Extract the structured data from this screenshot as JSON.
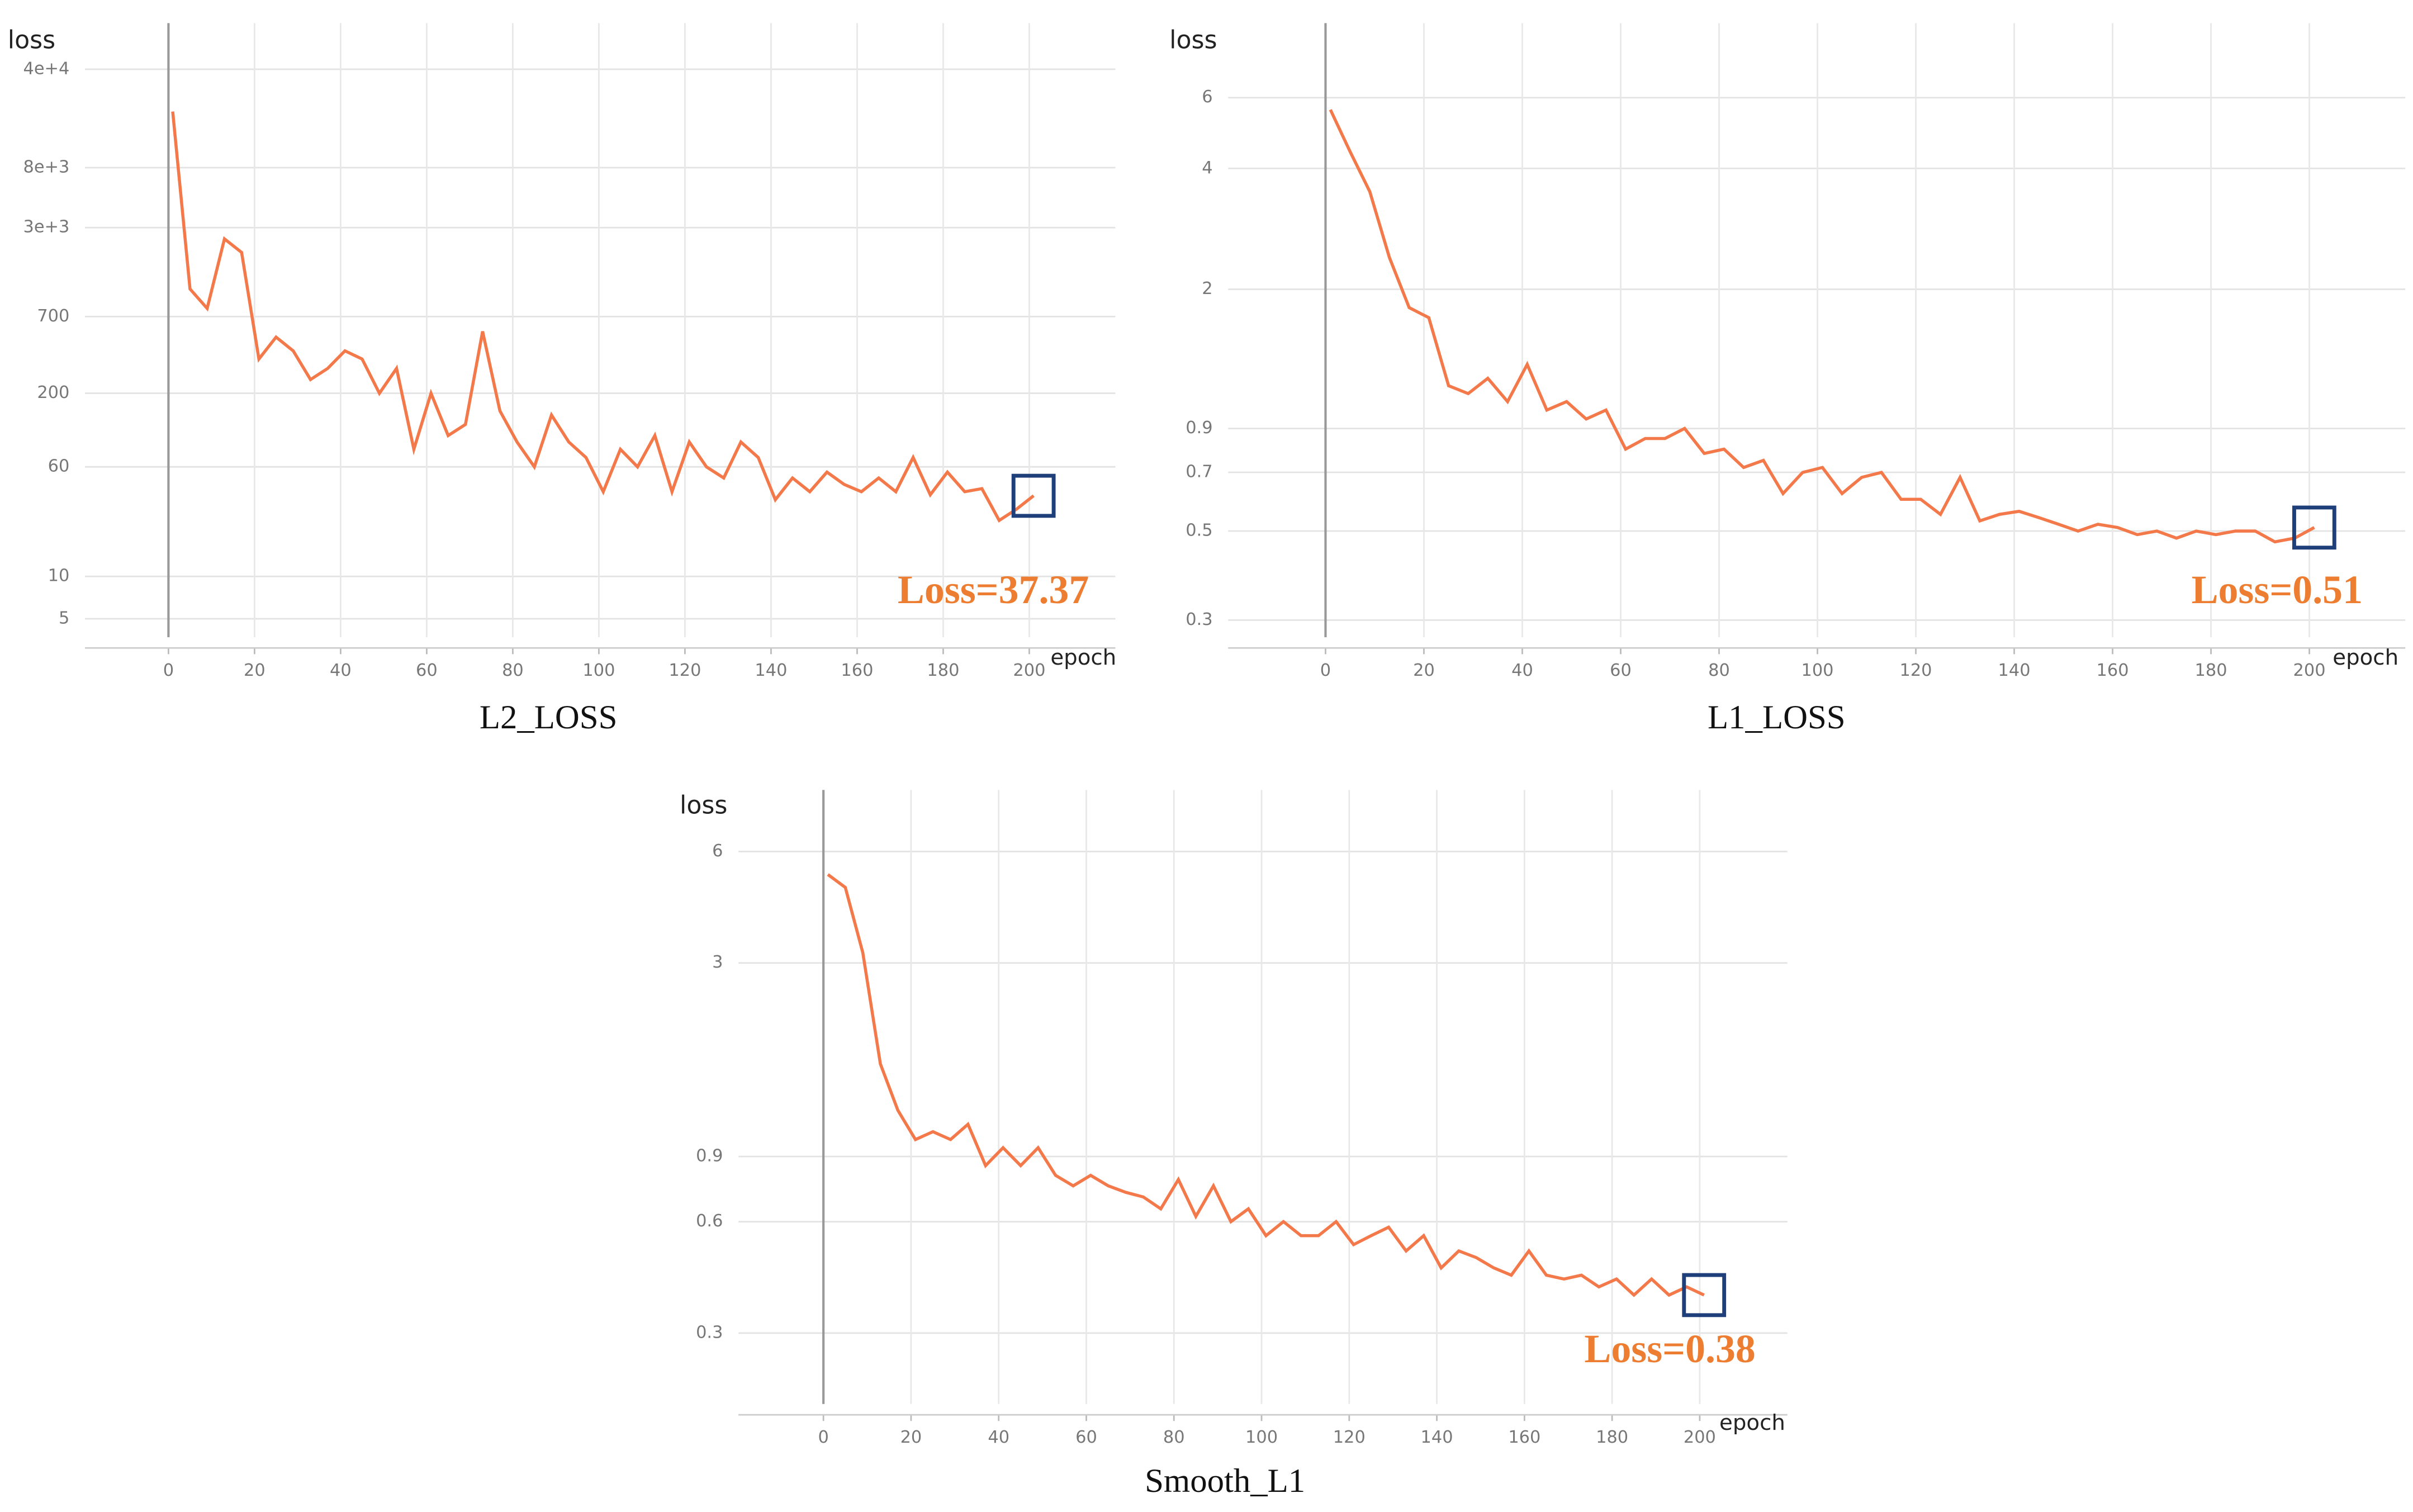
{
  "chart_data": [
    {
      "type": "line",
      "title": "L2_LOSS",
      "y_label": "loss",
      "x_label": "epoch",
      "annotation": "Loss=37.37",
      "color": "#f4794a",
      "log_scale": true,
      "grid": true,
      "xlim": [
        -19.4,
        220
      ],
      "xticks": [
        0,
        20,
        40,
        60,
        80,
        100,
        120,
        140,
        160,
        180,
        200
      ],
      "ylim": [
        3.7,
        85000
      ],
      "yticks": [
        5,
        10,
        60,
        200,
        700,
        {
          "value": 3000,
          "label": "3e+3"
        },
        {
          "value": 8000,
          "label": "8e+3"
        },
        {
          "value": 40000,
          "label": "4e+4"
        }
      ],
      "x": [
        1,
        5,
        9,
        13,
        17,
        21,
        25,
        29,
        33,
        37,
        41,
        45,
        49,
        53,
        57,
        61,
        65,
        69,
        73,
        77,
        81,
        85,
        89,
        93,
        97,
        101,
        105,
        109,
        113,
        117,
        121,
        125,
        129,
        133,
        137,
        141,
        145,
        149,
        153,
        157,
        161,
        165,
        169,
        173,
        177,
        181,
        185,
        189,
        193,
        197,
        201
      ],
      "values": [
        20000,
        1100,
        800,
        2500,
        2000,
        350,
        500,
        400,
        250,
        300,
        400,
        350,
        200,
        300,
        80,
        200,
        100,
        120,
        550,
        150,
        90,
        60,
        140,
        90,
        70,
        40,
        80,
        60,
        100,
        40,
        90,
        60,
        50,
        90,
        70,
        35,
        50,
        40,
        55,
        45,
        40,
        50,
        40,
        70,
        38,
        55,
        40,
        42,
        25,
        30,
        37.37
      ]
    },
    {
      "type": "line",
      "title": "L1_LOSS",
      "y_label": "loss",
      "x_label": "epoch",
      "annotation": "Loss=0.51",
      "color": "#f4794a",
      "log_scale": true,
      "grid": true,
      "xlim": [
        -19.8,
        219.5
      ],
      "xticks": [
        0,
        20,
        40,
        60,
        80,
        100,
        120,
        140,
        160,
        180,
        200
      ],
      "ylim": [
        0.272,
        9.2
      ],
      "yticks": [
        0.3,
        0.5,
        0.7,
        0.9,
        2,
        4,
        6
      ],
      "x": [
        1,
        5,
        9,
        13,
        17,
        21,
        25,
        29,
        33,
        37,
        41,
        45,
        49,
        53,
        57,
        61,
        65,
        69,
        73,
        77,
        81,
        85,
        89,
        93,
        97,
        101,
        105,
        109,
        113,
        117,
        121,
        125,
        129,
        133,
        137,
        141,
        145,
        149,
        153,
        157,
        161,
        165,
        169,
        173,
        177,
        181,
        185,
        189,
        193,
        197,
        201
      ],
      "values": [
        5.6,
        4.4,
        3.5,
        2.4,
        1.8,
        1.7,
        1.15,
        1.1,
        1.2,
        1.05,
        1.3,
        1.0,
        1.05,
        0.95,
        1.0,
        0.8,
        0.85,
        0.85,
        0.9,
        0.78,
        0.8,
        0.72,
        0.75,
        0.62,
        0.7,
        0.72,
        0.62,
        0.68,
        0.7,
        0.6,
        0.6,
        0.55,
        0.68,
        0.53,
        0.55,
        0.56,
        0.54,
        0.52,
        0.5,
        0.52,
        0.51,
        0.49,
        0.5,
        0.48,
        0.5,
        0.49,
        0.5,
        0.5,
        0.47,
        0.48,
        0.51
      ]
    },
    {
      "type": "line",
      "title": "Smooth_L1",
      "y_label": "loss",
      "x_label": "epoch",
      "annotation": "Loss=0.38",
      "color": "#f4794a",
      "log_scale": true,
      "grid": true,
      "xlim": [
        -19.4,
        220
      ],
      "xticks": [
        0,
        20,
        40,
        60,
        80,
        100,
        120,
        140,
        160,
        180,
        200
      ],
      "ylim": [
        0.193,
        8.8
      ],
      "yticks": [
        0.3,
        0.6,
        0.9,
        3,
        6
      ],
      "x": [
        1,
        5,
        9,
        13,
        17,
        21,
        25,
        29,
        33,
        37,
        41,
        45,
        49,
        53,
        57,
        61,
        65,
        69,
        73,
        77,
        81,
        85,
        89,
        93,
        97,
        101,
        105,
        109,
        113,
        117,
        121,
        125,
        129,
        133,
        137,
        141,
        145,
        149,
        153,
        157,
        161,
        165,
        169,
        173,
        177,
        181,
        185,
        189,
        193,
        197,
        201
      ],
      "values": [
        5.2,
        4.8,
        3.2,
        1.6,
        1.2,
        1.0,
        1.05,
        1.0,
        1.1,
        0.85,
        0.95,
        0.85,
        0.95,
        0.8,
        0.75,
        0.8,
        0.75,
        0.72,
        0.7,
        0.65,
        0.78,
        0.62,
        0.75,
        0.6,
        0.65,
        0.55,
        0.6,
        0.55,
        0.55,
        0.6,
        0.52,
        0.55,
        0.58,
        0.5,
        0.55,
        0.45,
        0.5,
        0.48,
        0.45,
        0.43,
        0.5,
        0.43,
        0.42,
        0.43,
        0.4,
        0.42,
        0.38,
        0.42,
        0.38,
        0.4,
        0.38
      ]
    }
  ]
}
